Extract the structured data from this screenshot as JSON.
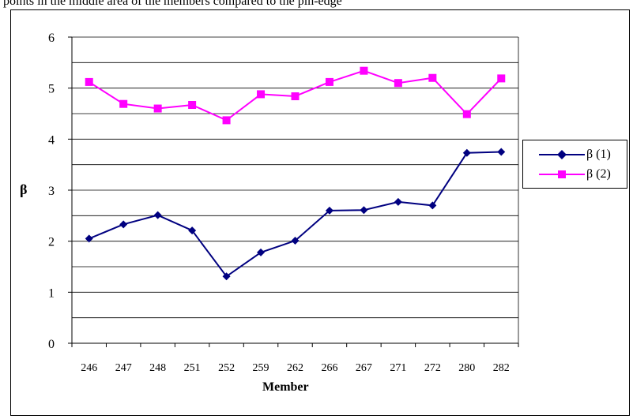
{
  "header": {
    "caption": "points in the middle area of the members compared to the pin-edge"
  },
  "chart_data": {
    "type": "line",
    "title": "",
    "xlabel": "Member",
    "ylabel": "β",
    "categories": [
      "246",
      "247",
      "248",
      "251",
      "252",
      "259",
      "262",
      "266",
      "267",
      "271",
      "272",
      "280",
      "282"
    ],
    "ylim": [
      0,
      6
    ],
    "yticks": [
      "0",
      "1",
      "2",
      "3",
      "4",
      "5",
      "6"
    ],
    "grid": "horizontal every 0.5",
    "legend": "right",
    "series": [
      {
        "name": "β (1)",
        "color": "#000080",
        "marker": "diamond",
        "values": [
          2.05,
          2.33,
          2.51,
          2.21,
          1.31,
          1.78,
          2.01,
          2.6,
          2.61,
          2.77,
          2.7,
          3.73,
          3.75
        ]
      },
      {
        "name": "β (2)",
        "color": "#ff00ff",
        "marker": "square",
        "values": [
          5.12,
          4.69,
          4.6,
          4.67,
          4.37,
          4.88,
          4.84,
          5.12,
          5.34,
          5.1,
          5.2,
          4.49,
          5.19
        ]
      }
    ]
  }
}
